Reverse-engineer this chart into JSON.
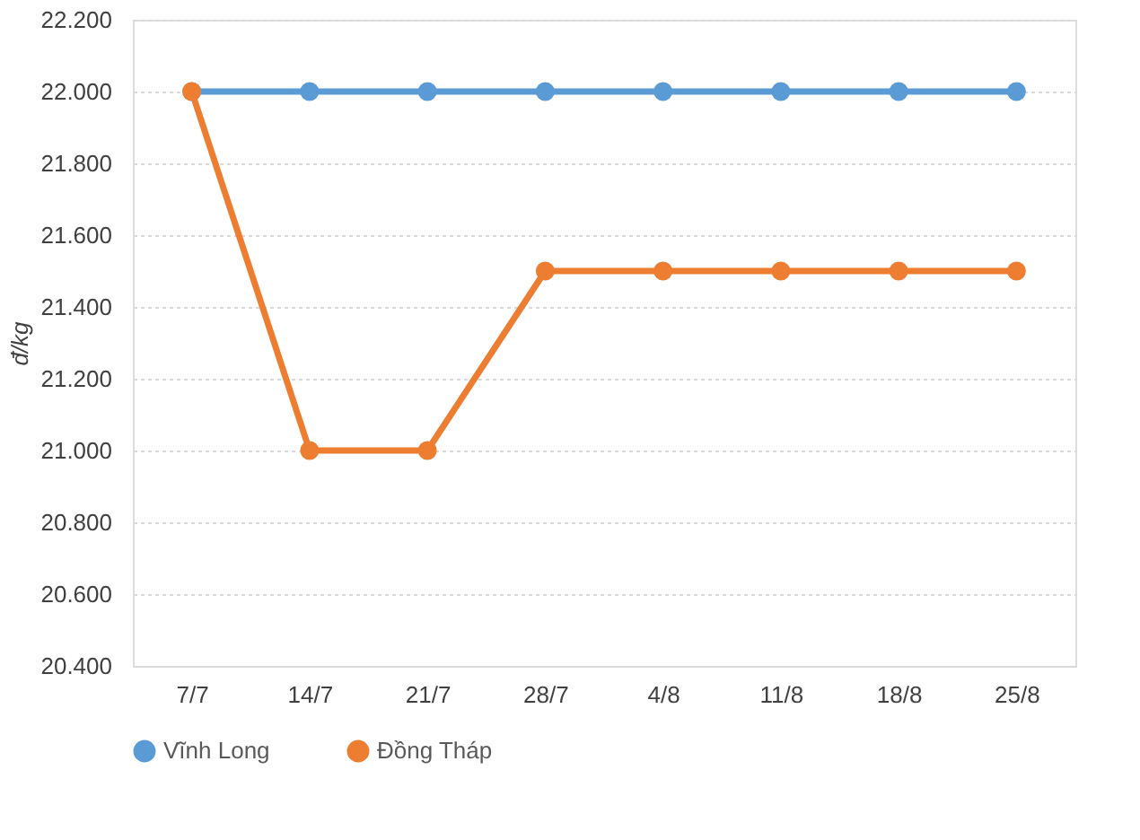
{
  "chart_data": {
    "type": "line",
    "ylabel": "đ/kg",
    "categories": [
      "7/7",
      "14/7",
      "21/7",
      "28/7",
      "4/8",
      "11/8",
      "18/8",
      "25/8"
    ],
    "series": [
      {
        "name": "Vĩnh Long",
        "color": "#5b9bd5",
        "values": [
          22000,
          22000,
          22000,
          22000,
          22000,
          22000,
          22000,
          22000
        ]
      },
      {
        "name": "Đồng Tháp",
        "color": "#ed7d31",
        "values": [
          22000,
          21000,
          21000,
          21500,
          21500,
          21500,
          21500,
          21500
        ]
      }
    ],
    "ylim": [
      20400,
      22200
    ],
    "yticks": [
      {
        "value": 20400,
        "label": "20.400"
      },
      {
        "value": 20600,
        "label": "20.600"
      },
      {
        "value": 20800,
        "label": "20.800"
      },
      {
        "value": 21000,
        "label": "21.000"
      },
      {
        "value": 21200,
        "label": "21.200"
      },
      {
        "value": 21400,
        "label": "21.400"
      },
      {
        "value": 21600,
        "label": "21.600"
      },
      {
        "value": 21800,
        "label": "21.800"
      },
      {
        "value": 22000,
        "label": "22.000"
      },
      {
        "value": 22200,
        "label": "22.200"
      }
    ],
    "grid": "y",
    "legend": "bottom",
    "marker": "circle",
    "line_style": "solid"
  }
}
